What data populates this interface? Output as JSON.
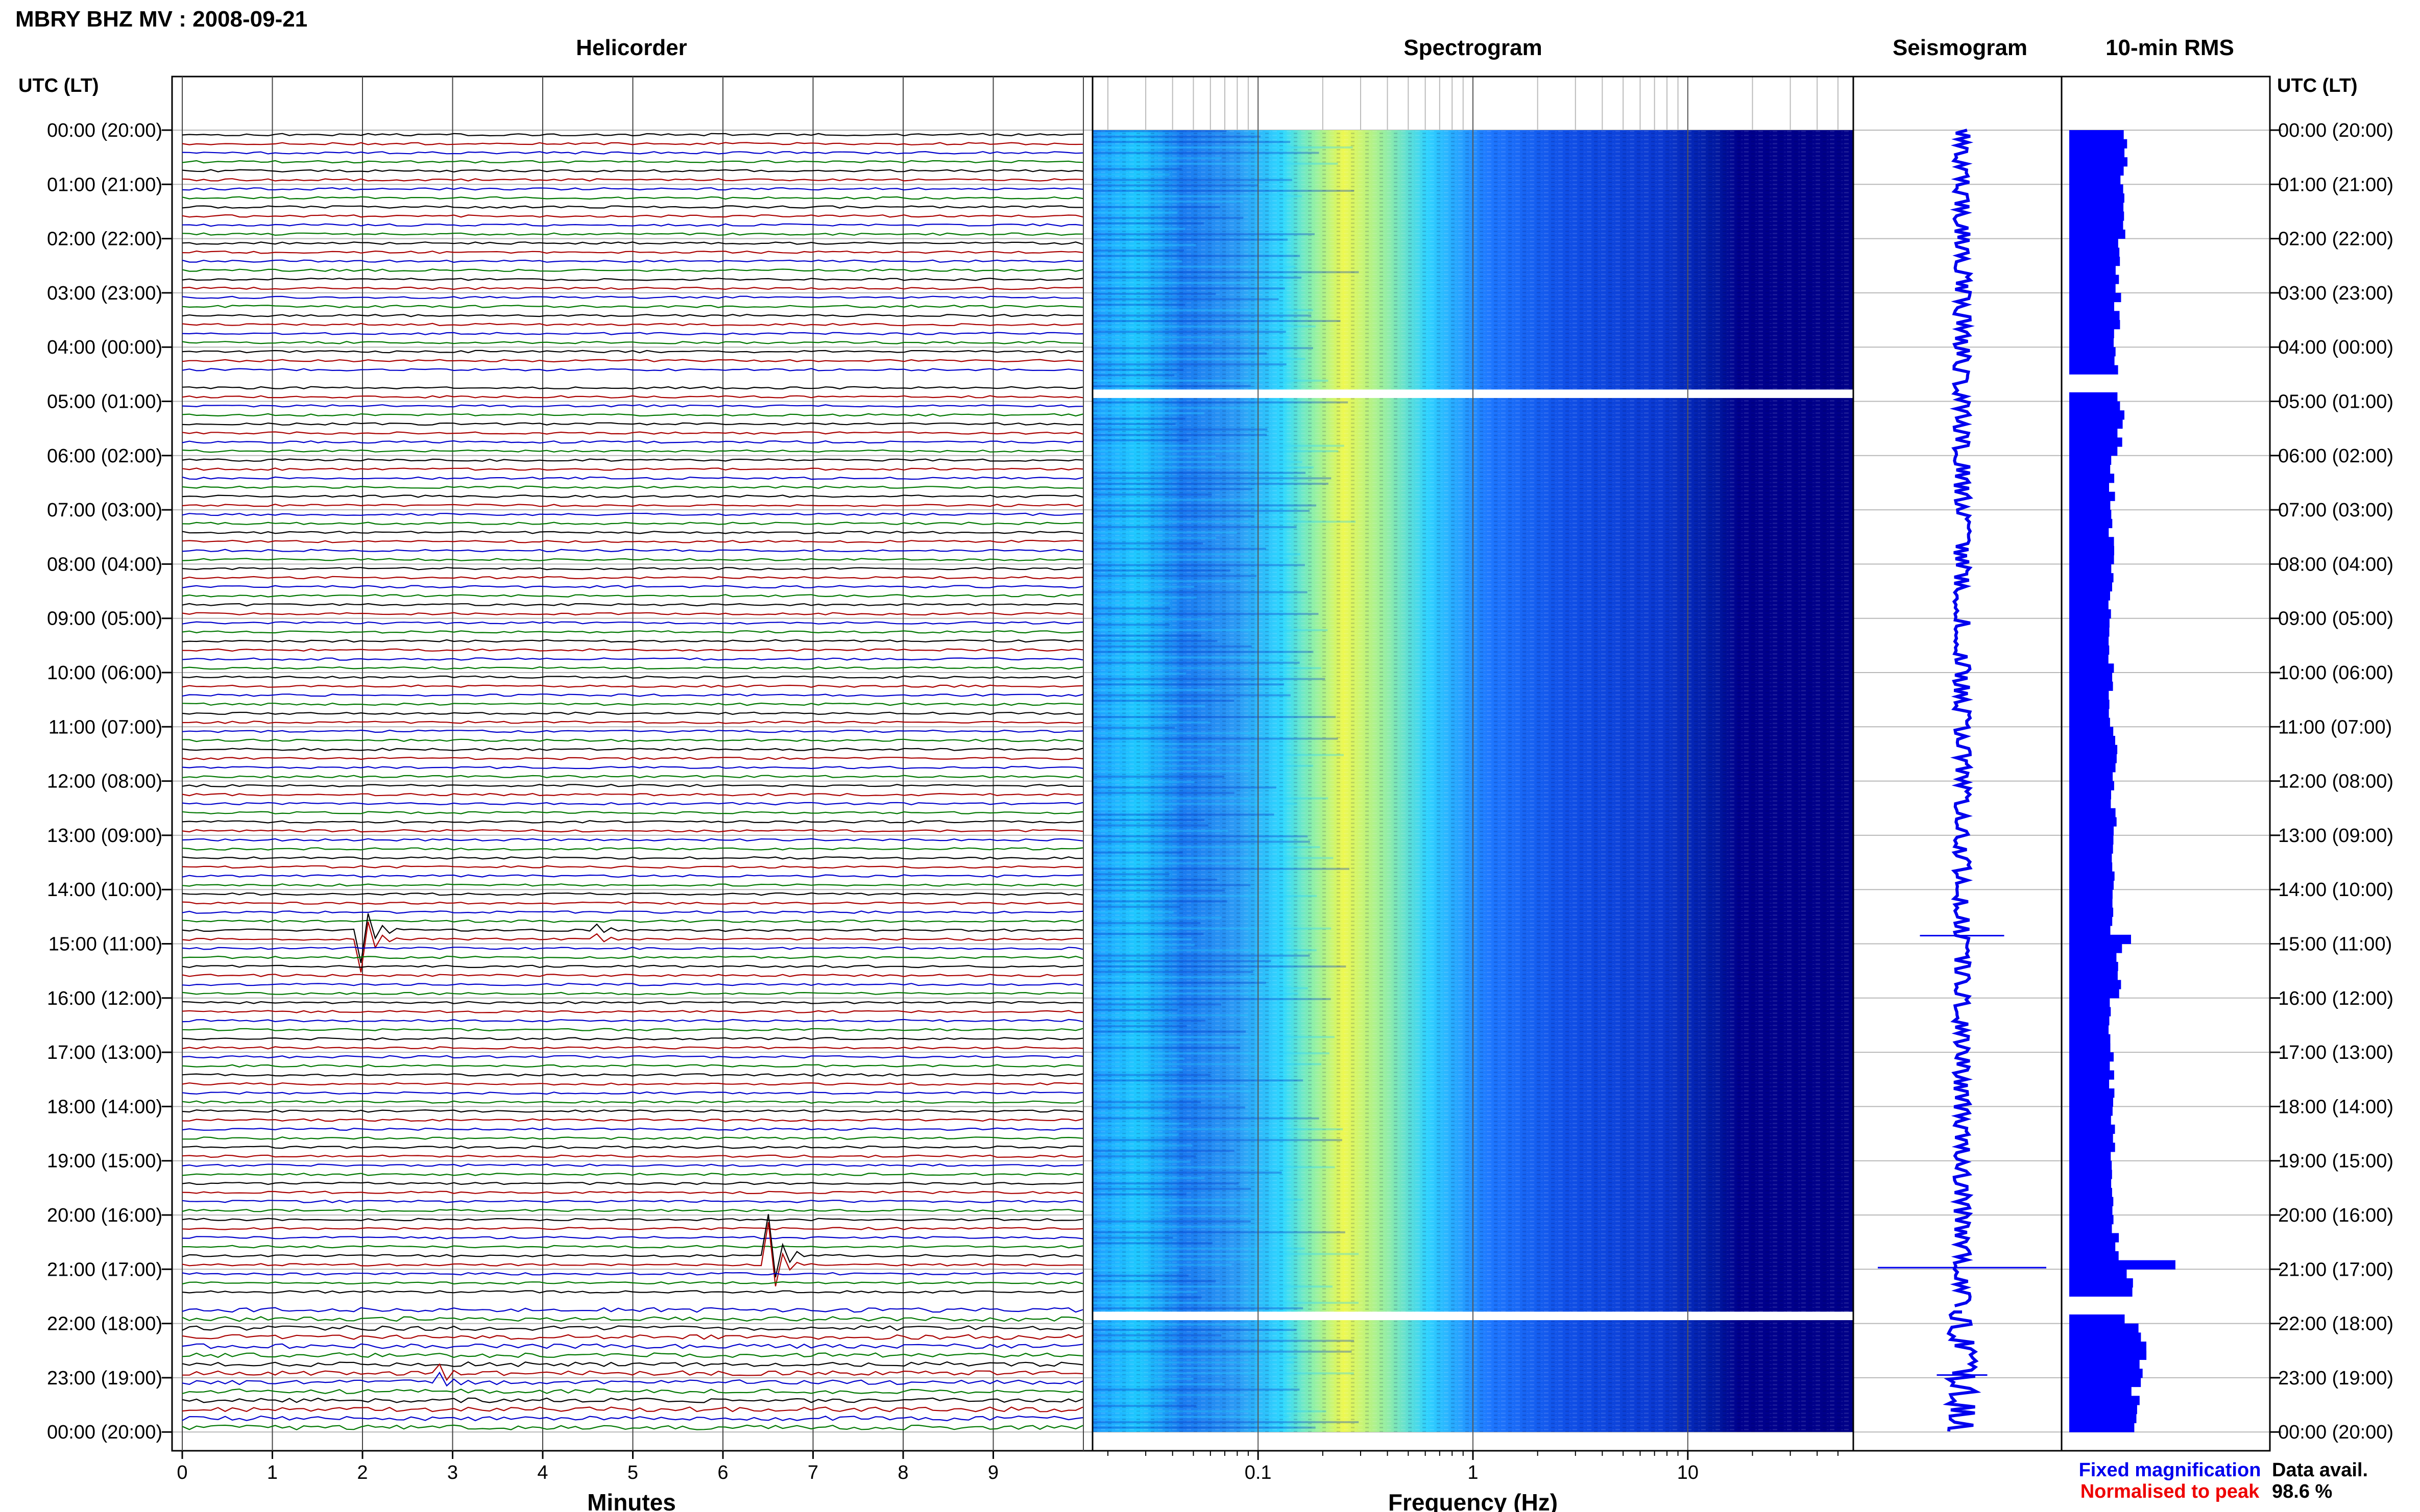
{
  "page": {
    "title": "MBRY BHZ MV : 2008-09-21",
    "panels": {
      "helicorder": "Helicorder",
      "spectrogram": "Spectrogram",
      "seismogram": "Seismogram",
      "rms": "10-min RMS"
    },
    "time_axis_label": "UTC (LT)",
    "time_ticks": [
      "00:00 (20:00)",
      "01:00 (21:00)",
      "02:00 (22:00)",
      "03:00 (23:00)",
      "04:00 (00:00)",
      "05:00 (01:00)",
      "06:00 (02:00)",
      "07:00 (03:00)",
      "08:00 (04:00)",
      "09:00 (05:00)",
      "10:00 (06:00)",
      "11:00 (07:00)",
      "12:00 (08:00)",
      "13:00 (09:00)",
      "14:00 (10:00)",
      "15:00 (11:00)",
      "16:00 (12:00)",
      "17:00 (13:00)",
      "18:00 (14:00)",
      "19:00 (15:00)",
      "20:00 (16:00)",
      "21:00 (17:00)",
      "22:00 (18:00)",
      "23:00 (19:00)",
      "00:00 (20:00)"
    ],
    "minutes_label": "Minutes",
    "minutes_ticks": [
      "0",
      "1",
      "2",
      "3",
      "4",
      "5",
      "6",
      "7",
      "8",
      "9"
    ],
    "frequency_label": "Frequency (Hz)",
    "frequency_ticks": [
      "0.1",
      "1",
      "10"
    ],
    "legend": {
      "fixed": "Fixed magnification",
      "normalised": "Normalised to peak",
      "fixed_color": "#0000ee",
      "normalised_color": "#ee0000"
    },
    "availability": {
      "label": "Data avail.",
      "value": "98.6 %"
    }
  },
  "chart_data": [
    {
      "type": "line",
      "panel": "Helicorder",
      "xlabel": "Minutes",
      "xlim": [
        0,
        10
      ],
      "x_ticks": [
        0,
        1,
        2,
        3,
        4,
        5,
        6,
        7,
        8,
        9
      ],
      "y_ticks_hours": [
        0,
        1,
        2,
        3,
        4,
        5,
        6,
        7,
        8,
        9,
        10,
        11,
        12,
        13,
        14,
        15,
        16,
        17,
        18,
        19,
        20,
        21,
        22,
        23,
        24
      ],
      "lines_per_hour": 6,
      "trace_colors": [
        "#000000",
        "#aa0000",
        "#0000cc",
        "#007700"
      ],
      "events": [
        {
          "hour": 14.83,
          "minute": 2.0,
          "amplitude": 2.0
        },
        {
          "hour": 14.83,
          "minute": 4.55,
          "amplitude": 0.6
        },
        {
          "hour": 20.83,
          "minute": 6.5,
          "amplitude": 3.0
        },
        {
          "hour": 23.0,
          "minute": 2.8,
          "amplitude": 1.0
        }
      ],
      "gaps_hours": [
        [
          4.5,
          4.75
        ],
        [
          21.5,
          21.75
        ]
      ]
    },
    {
      "type": "heatmap",
      "panel": "Spectrogram",
      "xlabel": "Frequency (Hz)",
      "x_scale": "log",
      "xlim": [
        0.02,
        50
      ],
      "x_ticks": [
        0.1,
        1,
        10
      ],
      "peak_frequency_hz": 0.35,
      "colormap": [
        "#00008b",
        "#0000ff",
        "#0064ff",
        "#00c8ff",
        "#40ffc0",
        "#c8ff40",
        "#ffff00"
      ],
      "gaps_hours": [
        [
          4.5,
          4.75
        ],
        [
          21.5,
          21.75
        ]
      ]
    },
    {
      "type": "line",
      "panel": "Seismogram",
      "events_hours": [
        {
          "hour": 14.85,
          "amplitude": 0.5
        },
        {
          "hour": 20.97,
          "amplitude": 1.0
        },
        {
          "hour": 22.95,
          "amplitude": 0.3
        }
      ]
    },
    {
      "type": "bar",
      "panel": "10-min RMS",
      "bin_minutes": 10,
      "xlim": [
        0,
        1
      ],
      "values_by_hour": [
        0.28,
        0.29,
        0.26,
        0.25,
        0.24,
        0.27,
        0.22,
        0.22,
        0.22,
        0.22,
        0.22,
        0.24,
        0.23,
        0.22,
        0.23,
        0.26,
        0.22,
        0.22,
        0.22,
        0.22,
        0.24,
        0.31,
        0.38,
        0.35
      ]
    }
  ]
}
